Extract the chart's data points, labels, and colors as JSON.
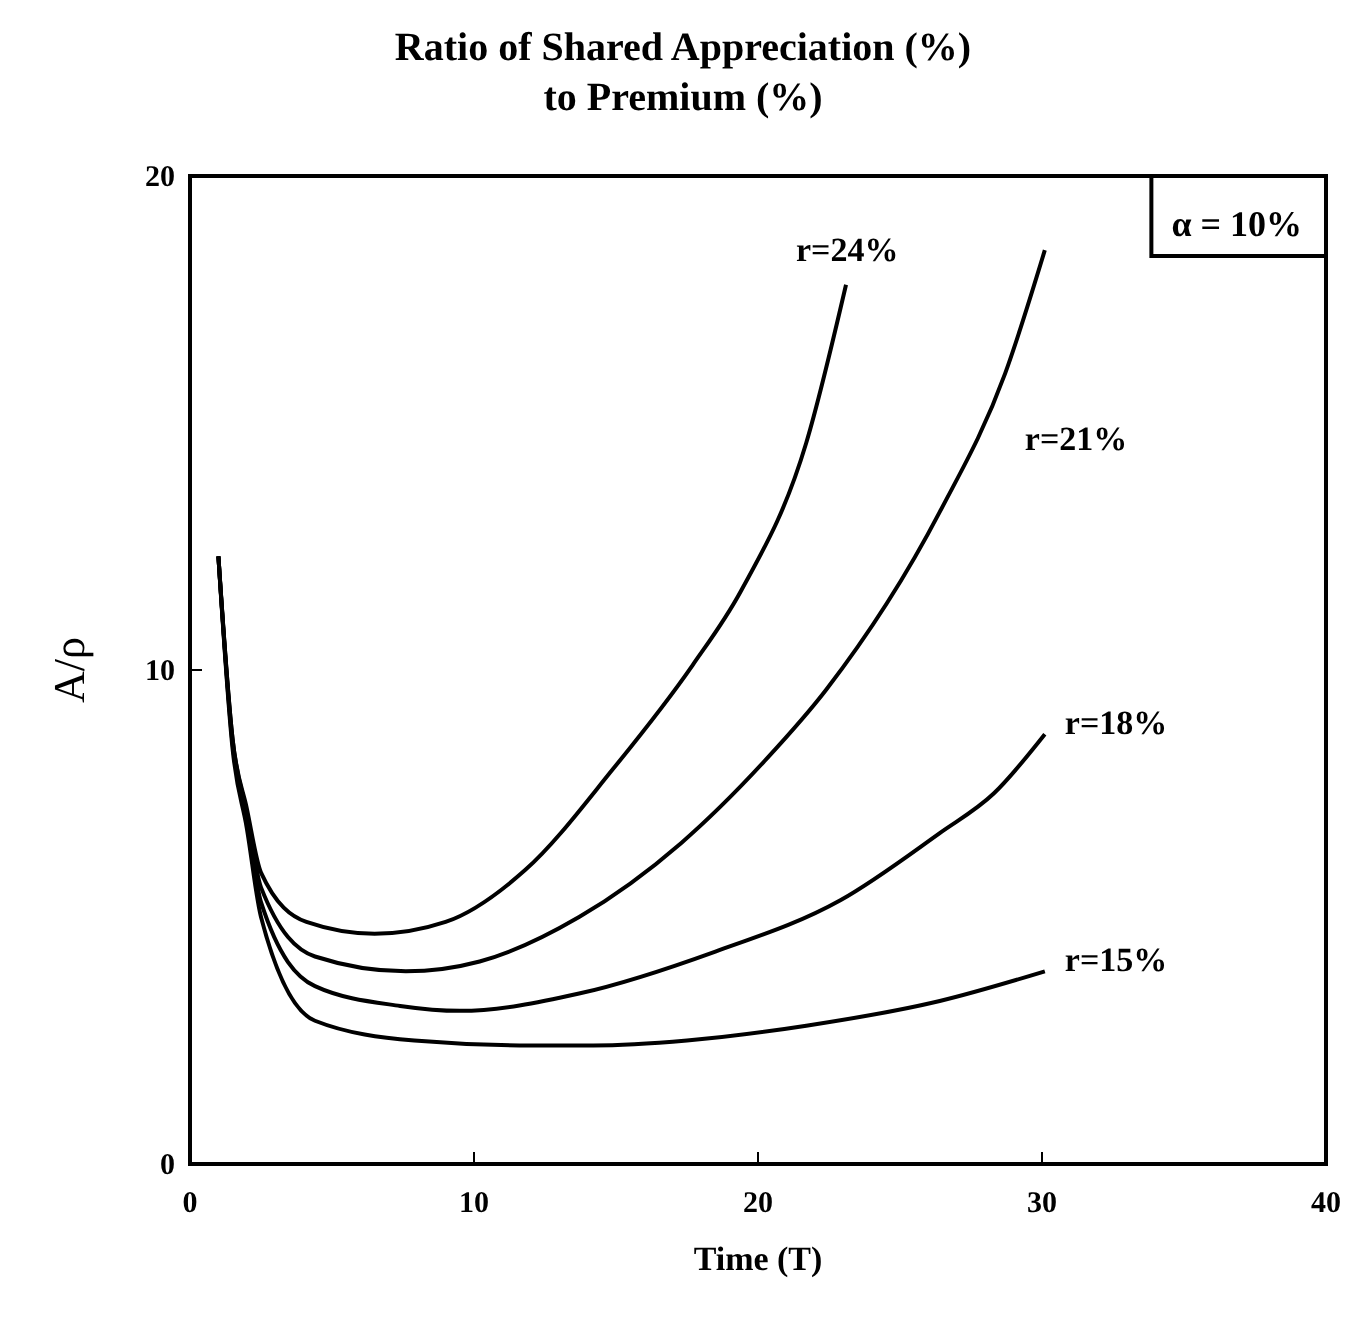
{
  "chart_data": {
    "type": "line",
    "title": "Ratio of Shared Appreciation (%)",
    "subtitle": "to Premium (%)",
    "xlabel": "Time (T)",
    "ylabel": "A/ρ",
    "annotations": [
      "α = 10%"
    ],
    "xlim": [
      0,
      40
    ],
    "xticks": [
      0,
      10,
      20,
      30,
      40
    ],
    "ylim": [
      0,
      20
    ],
    "yticks": [
      0,
      10,
      20
    ],
    "grid": false,
    "legend": false,
    "line_style": "solid",
    "marker": "none",
    "series": [
      {
        "name": "r=24%",
        "color": "#000000",
        "x": [
          1,
          1.5,
          2,
          2.5,
          4.1,
          6.5,
          9,
          11.8,
          14.9,
          17.7,
          19.4,
          21.7,
          23.1
        ],
        "values": [
          12.3,
          8.6,
          7.2,
          5.9,
          4.9,
          4.66,
          4.9,
          5.95,
          8,
          10.1,
          11.6,
          14.6,
          17.8
        ]
      },
      {
        "name": "r=21%",
        "color": "#000000",
        "x": [
          1,
          1.5,
          2,
          2.5,
          4.4,
          7.6,
          10.2,
          13.7,
          17.3,
          20.3,
          22.4,
          26.4,
          28.7,
          30.1
        ],
        "values": [
          12.3,
          8.6,
          7.1,
          5.6,
          4.2,
          3.9,
          4.1,
          5,
          6.5,
          8.2,
          9.6,
          13.2,
          16,
          18.5
        ]
      },
      {
        "name": "r=18%",
        "color": "#000000",
        "x": [
          1,
          1.5,
          2,
          2.5,
          4.4,
          7.4,
          9.5,
          13.7,
          18.5,
          22.9,
          26.4,
          28.3,
          30.1
        ],
        "values": [
          12.3,
          8.5,
          7,
          5.3,
          3.6,
          3.2,
          3.1,
          3.45,
          4.3,
          5.34,
          6.7,
          7.5,
          8.7
        ]
      },
      {
        "name": "r=15%",
        "color": "#000000",
        "x": [
          1,
          1.5,
          2,
          2.5,
          4.4,
          7.9,
          12,
          14.2,
          17.5,
          21.7,
          26.4,
          30.1
        ],
        "values": [
          12.3,
          8.4,
          6.8,
          5,
          2.9,
          2.5,
          2.4,
          2.4,
          2.5,
          2.8,
          3.3,
          3.9
        ]
      }
    ]
  }
}
